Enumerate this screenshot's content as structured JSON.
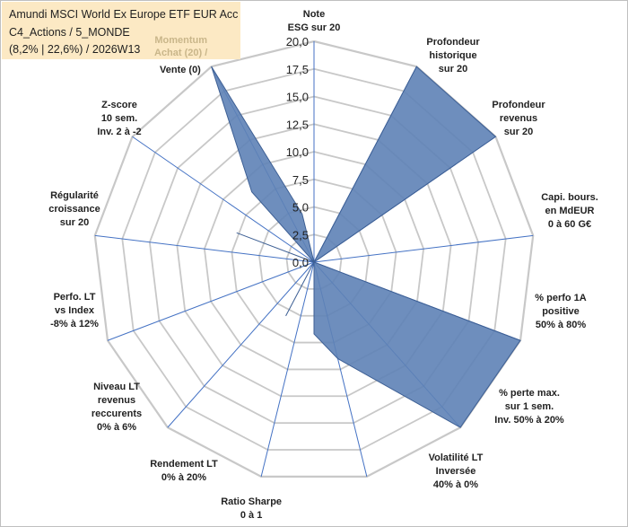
{
  "header": {
    "line1": "Amundi MSCI World Ex Europe ETF EUR Acc",
    "line2": "C4_Actions / 5_MONDE",
    "line3": "(8,2% | 22,6%) / 2026W13",
    "momentum_line1": "Momentum",
    "momentum_line2": "Achat (20) /",
    "vente": "Vente (0)"
  },
  "chart_data": {
    "type": "radar",
    "title": "",
    "rmin": 0,
    "rmax": 20,
    "ticks": [
      "0,0",
      "2,5",
      "5,0",
      "7,5",
      "10,0",
      "12,5",
      "15,0",
      "17,5",
      "20,0"
    ],
    "tick_values": [
      0,
      2.5,
      5,
      7.5,
      10,
      12.5,
      15,
      17.5,
      20
    ],
    "axes": [
      {
        "label": [
          "Note",
          "ESG sur 20"
        ],
        "value": 0
      },
      {
        "label": [
          "Profondeur",
          "historique",
          "sur 20"
        ],
        "value": 20
      },
      {
        "label": [
          "Profondeur",
          "revenus",
          "sur 20"
        ],
        "value": 20
      },
      {
        "label": [
          "Capi. bours.",
          "en MdEUR",
          "0 à 60 G€"
        ],
        "value": 0
      },
      {
        "label": [
          "% perfo 1A",
          "positive",
          "50% à 80%"
        ],
        "value": 20
      },
      {
        "label": [
          "% perte max.",
          "sur 1 sem.",
          "Inv. 50% à 20%"
        ],
        "value": 20
      },
      {
        "label": [
          "Volatilité LT",
          "Inversée",
          "40% à 0%"
        ],
        "value": 9
      },
      {
        "label": [
          "Ratio Sharpe",
          "0 à 1"
        ],
        "value": 0
      },
      {
        "label": [
          "Rendement LT",
          "0% à 20%"
        ],
        "value": 0
      },
      {
        "label": [
          "Niveau LT",
          "revenus",
          "reccurents",
          "0% à 6%"
        ],
        "value": 0
      },
      {
        "label": [
          "Perfo. LT",
          "vs Index",
          "-8% à 12%"
        ],
        "value": 0
      },
      {
        "label": [
          "Régularité",
          "croissance",
          "sur 20"
        ],
        "value": 0
      },
      {
        "label": [
          "Z-score",
          "10 sem.",
          "Inv. 2 à -2"
        ],
        "value": 20
      }
    ],
    "extra_points": [
      {
        "after_axis": 6,
        "value": 6.5
      },
      {
        "after_axis": 7,
        "value": 5.5
      },
      {
        "after_axis": 10,
        "value": 7.5
      },
      {
        "after_axis": 11,
        "value": 8.5
      },
      {
        "after_axis": 12,
        "value": 4.5
      }
    ],
    "colors": {
      "fill": "#5e82b6",
      "stroke": "#3d5f94",
      "grid": "#c8c8c8",
      "spoke": "#4472c4"
    }
  }
}
